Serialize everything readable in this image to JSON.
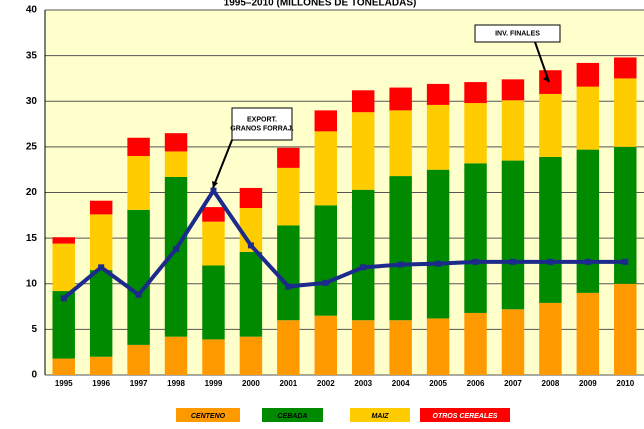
{
  "chart_data": {
    "type": "bar",
    "stacked": true,
    "title": "1995–2010 (MILLONES DE TONELADAS)",
    "categories": [
      "1995",
      "1996",
      "1997",
      "1998",
      "1999",
      "2000",
      "2001",
      "2002",
      "2003",
      "2004",
      "2005",
      "2006",
      "2007",
      "2008",
      "2009",
      "2010"
    ],
    "series": [
      {
        "name": "CENTENO",
        "color": "#ff9900",
        "values": [
          1.8,
          2.0,
          3.3,
          4.2,
          3.9,
          4.2,
          6.0,
          6.5,
          6.0,
          6.0,
          6.2,
          6.8,
          7.2,
          7.9,
          9.0,
          10.0
        ]
      },
      {
        "name": "CEBADA",
        "color": "#008a00",
        "values": [
          7.4,
          9.5,
          14.8,
          17.5,
          8.1,
          9.3,
          10.4,
          12.1,
          14.3,
          15.8,
          16.3,
          16.4,
          16.3,
          16.0,
          15.7,
          15.0
        ]
      },
      {
        "name": "MAIZ",
        "color": "#ffcc00",
        "values": [
          5.2,
          6.1,
          5.9,
          2.8,
          4.8,
          4.8,
          6.3,
          8.1,
          8.5,
          7.2,
          7.1,
          6.6,
          6.6,
          6.9,
          6.9,
          7.5
        ]
      },
      {
        "name": "OTROS CEREALES",
        "color": "#ff0000",
        "values": [
          0.7,
          1.5,
          2.0,
          2.0,
          1.6,
          2.2,
          2.2,
          2.3,
          2.4,
          2.5,
          2.3,
          2.3,
          2.3,
          2.6,
          2.6,
          2.3
        ]
      }
    ],
    "line": {
      "color": "#1c2a8c",
      "values": [
        8.4,
        11.8,
        8.8,
        13.8,
        20.2,
        14.2,
        9.7,
        10.1,
        11.8,
        12.1,
        12.2,
        12.4,
        12.4,
        12.4,
        12.4,
        12.4
      ]
    },
    "annotations": [
      {
        "lines": [
          "EXPORT.",
          "GRANOS FORRAJ."
        ]
      },
      {
        "lines": [
          "INV. FINALES"
        ]
      }
    ],
    "ylim": [
      0,
      40
    ],
    "yticks": [
      0,
      5,
      10,
      15,
      20,
      25,
      30,
      35,
      40
    ],
    "grid": true
  }
}
